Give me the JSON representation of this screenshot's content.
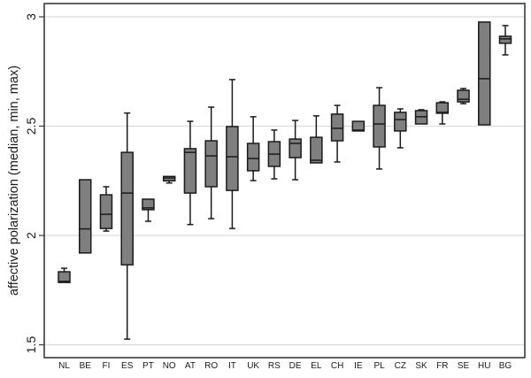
{
  "chart_data": {
    "type": "boxplot",
    "title": "",
    "xlabel": "",
    "ylabel": "affective polarization (median, min, max)",
    "ylim": [
      1.44,
      3.06
    ],
    "yticks": [
      1.5,
      2,
      2.5,
      3
    ],
    "ytick_labels": [
      "1.5",
      "2",
      "2.5",
      "3"
    ],
    "grid": true,
    "legend": null,
    "box_color": "#7f7f7f",
    "line_color": "#1a1a1a",
    "grid_color": "#dcdcdc",
    "categories": [
      "NL",
      "BE",
      "FI",
      "ES",
      "PT",
      "NO",
      "AT",
      "RO",
      "IT",
      "UK",
      "RS",
      "DE",
      "EL",
      "CH",
      "IE",
      "PL",
      "CZ",
      "SK",
      "FR",
      "SE",
      "HU",
      "BG"
    ],
    "boxes": [
      {
        "label": "NL",
        "min": 1.785,
        "q1": 1.785,
        "median": 1.79,
        "q3": 1.834,
        "max": 1.85
      },
      {
        "label": "BE",
        "min": 1.92,
        "q1": 1.92,
        "median": 2.03,
        "q3": 2.255,
        "max": 2.255
      },
      {
        "label": "FI",
        "min": 2.02,
        "q1": 2.032,
        "median": 2.097,
        "q3": 2.186,
        "max": 2.223
      },
      {
        "label": "ES",
        "min": 1.526,
        "q1": 1.866,
        "median": 2.194,
        "q3": 2.38,
        "max": 2.56
      },
      {
        "label": "PT",
        "min": 2.065,
        "q1": 2.118,
        "median": 2.126,
        "q3": 2.166,
        "max": 2.166
      },
      {
        "label": "NO",
        "min": 2.24,
        "q1": 2.25,
        "median": 2.263,
        "q3": 2.27,
        "max": 2.27
      },
      {
        "label": "AT",
        "min": 2.05,
        "q1": 2.194,
        "median": 2.38,
        "q3": 2.397,
        "max": 2.522
      },
      {
        "label": "RO",
        "min": 2.077,
        "q1": 2.223,
        "median": 2.364,
        "q3": 2.433,
        "max": 2.587
      },
      {
        "label": "IT",
        "min": 2.032,
        "q1": 2.206,
        "median": 2.36,
        "q3": 2.498,
        "max": 2.713
      },
      {
        "label": "UK",
        "min": 2.251,
        "q1": 2.296,
        "median": 2.352,
        "q3": 2.421,
        "max": 2.543
      },
      {
        "label": "RS",
        "min": 2.259,
        "q1": 2.316,
        "median": 2.372,
        "q3": 2.429,
        "max": 2.482
      },
      {
        "label": "DE",
        "min": 2.255,
        "q1": 2.356,
        "median": 2.421,
        "q3": 2.441,
        "max": 2.526
      },
      {
        "label": "EL",
        "min": 2.332,
        "q1": 2.332,
        "median": 2.344,
        "q3": 2.449,
        "max": 2.547
      },
      {
        "label": "CH",
        "min": 2.336,
        "q1": 2.433,
        "median": 2.49,
        "q3": 2.555,
        "max": 2.595
      },
      {
        "label": "IE",
        "min": 2.478,
        "q1": 2.478,
        "median": 2.482,
        "q3": 2.522,
        "max": 2.522
      },
      {
        "label": "PL",
        "min": 2.304,
        "q1": 2.405,
        "median": 2.51,
        "q3": 2.595,
        "max": 2.676
      },
      {
        "label": "CZ",
        "min": 2.401,
        "q1": 2.478,
        "median": 2.53,
        "q3": 2.563,
        "max": 2.579
      },
      {
        "label": "SK",
        "min": 2.51,
        "q1": 2.51,
        "median": 2.543,
        "q3": 2.571,
        "max": 2.575
      },
      {
        "label": "FR",
        "min": 2.51,
        "q1": 2.559,
        "median": 2.563,
        "q3": 2.607,
        "max": 2.611
      },
      {
        "label": "SE",
        "min": 2.603,
        "q1": 2.611,
        "median": 2.623,
        "q3": 2.664,
        "max": 2.672
      },
      {
        "label": "HU",
        "min": 2.506,
        "q1": 2.506,
        "median": 2.717,
        "q3": 2.976,
        "max": 2.976
      },
      {
        "label": "BG",
        "min": 2.826,
        "q1": 2.879,
        "median": 2.899,
        "q3": 2.911,
        "max": 2.96
      }
    ]
  }
}
